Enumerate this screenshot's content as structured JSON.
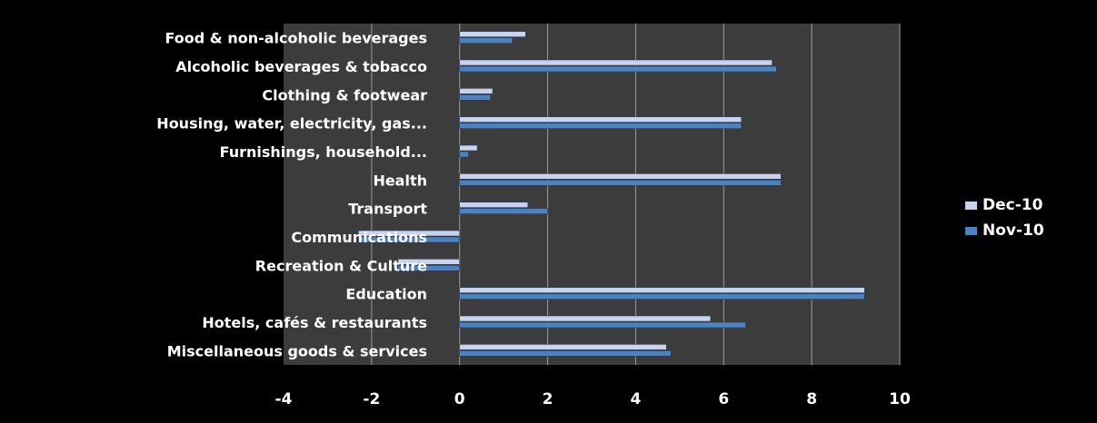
{
  "chart_data": {
    "type": "bar",
    "orientation": "horizontal",
    "categories": [
      "Food & non-alcoholic beverages",
      "Alcoholic beverages & tobacco",
      "Clothing & footwear",
      "Housing, water,  electricity, gas...",
      "Furnishings, household...",
      "Health",
      "Transport",
      "Communications",
      "Recreation & Culture",
      "Education",
      "Hotels, cafés & restaurants",
      "Miscellaneous goods & services"
    ],
    "series": [
      {
        "name": "Dec-10",
        "color": "#c9d4ea",
        "values": [
          1.5,
          7.1,
          0.75,
          6.4,
          0.4,
          7.3,
          1.55,
          -2.3,
          -1.4,
          9.2,
          5.7,
          4.7
        ]
      },
      {
        "name": "Nov-10",
        "color": "#4f81bd",
        "values": [
          1.2,
          7.2,
          0.7,
          6.4,
          0.2,
          7.3,
          2.0,
          -2.3,
          -1.4,
          9.2,
          6.5,
          4.8
        ]
      }
    ],
    "xlim": [
      -4,
      10
    ],
    "xticks": [
      -4,
      -2,
      0,
      2,
      4,
      6,
      8,
      10
    ],
    "grid": "vertical",
    "legend_position": "right"
  }
}
